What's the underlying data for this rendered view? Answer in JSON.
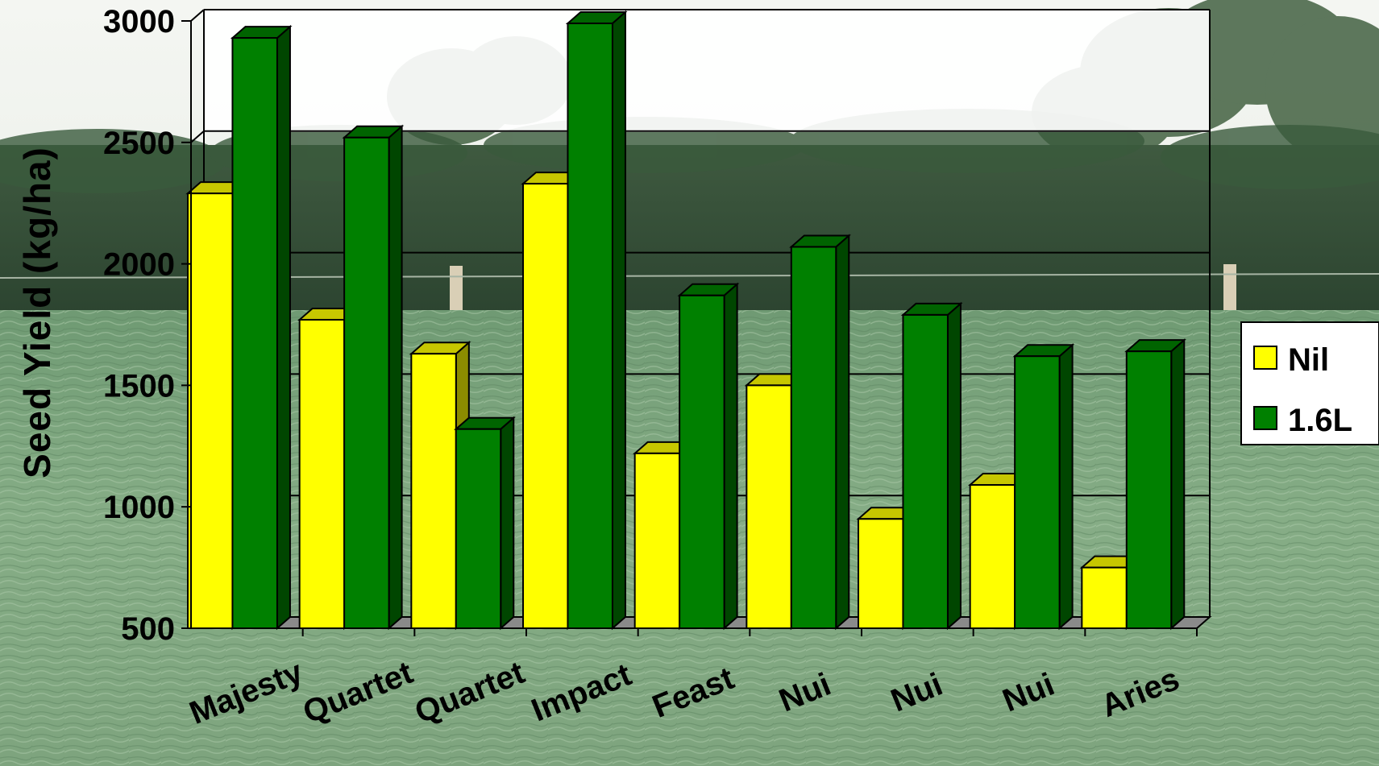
{
  "chart_data": {
    "type": "bar",
    "ylabel": "Seed Yield (kg/ha)",
    "ylim": [
      500,
      3000
    ],
    "yticks": [
      500,
      1000,
      1500,
      2000,
      2500,
      3000
    ],
    "categories": [
      "Majesty",
      "Quartet",
      "Quartet",
      "Impact",
      "Feast",
      "Nui",
      "Nui",
      "Nui",
      "Aries"
    ],
    "series": [
      {
        "name": "Nil",
        "color": "#ffff00",
        "values": [
          2290,
          1770,
          1630,
          2330,
          1220,
          1500,
          950,
          1090,
          750
        ]
      },
      {
        "name": "1.6L",
        "color": "#008000",
        "values": [
          2930,
          2520,
          1320,
          2990,
          1870,
          2070,
          1790,
          1620,
          1640
        ]
      }
    ],
    "grid": true,
    "legend": "right",
    "style": "3d-clustered"
  }
}
